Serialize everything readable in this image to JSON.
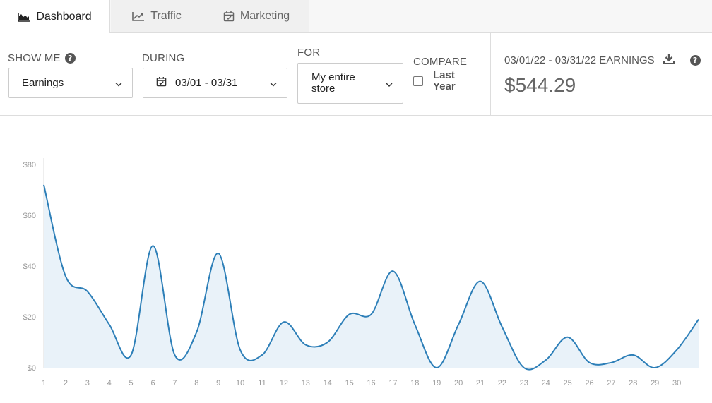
{
  "tabs": [
    {
      "label": "Dashboard",
      "icon": "area-chart-icon",
      "active": true
    },
    {
      "label": "Traffic",
      "icon": "line-chart-icon",
      "active": false
    },
    {
      "label": "Marketing",
      "icon": "calendar-check-icon",
      "active": false
    }
  ],
  "filters": {
    "show_me": {
      "label": "SHOW ME",
      "value": "Earnings"
    },
    "during": {
      "label": "DURING",
      "value": "03/01 - 03/31"
    },
    "for": {
      "label": "FOR",
      "value_line1": "My entire",
      "value_line2": "store"
    },
    "compare": {
      "label": "COMPARE",
      "option_line1": "Last",
      "option_line2": "Year",
      "checked": false
    }
  },
  "earnings": {
    "label": "03/01/22 - 03/31/22 EARNINGS",
    "value": "$544.29"
  },
  "colors": {
    "line": "#2d7fb8",
    "fill": "#e9f2f9",
    "axis": "#dddddd"
  },
  "chart_data": {
    "type": "area",
    "x": [
      1,
      2,
      3,
      4,
      5,
      6,
      7,
      8,
      9,
      10,
      11,
      12,
      13,
      14,
      15,
      16,
      17,
      18,
      19,
      20,
      21,
      22,
      23,
      24,
      25,
      26,
      27,
      28,
      29,
      30,
      31
    ],
    "x_tick_labels": [
      "1",
      "2",
      "3",
      "4",
      "5",
      "6",
      "7",
      "8",
      "9",
      "10",
      "11",
      "12",
      "13",
      "14",
      "15",
      "16",
      "17",
      "18",
      "19",
      "20",
      "21",
      "22",
      "23",
      "24",
      "25",
      "26",
      "27",
      "28",
      "29",
      "30"
    ],
    "values": [
      72,
      36,
      30,
      17,
      5,
      48,
      5,
      14,
      45,
      7,
      5,
      18,
      9,
      10,
      21,
      21,
      38,
      17,
      0,
      17,
      34,
      16,
      0,
      3,
      12,
      2,
      2,
      5,
      0,
      7,
      19
    ],
    "y_tick_labels": [
      "$0",
      "$20",
      "$40",
      "$60",
      "$80"
    ],
    "ylim": [
      0,
      80
    ],
    "xlabel": "",
    "ylabel": "",
    "grid": false
  }
}
